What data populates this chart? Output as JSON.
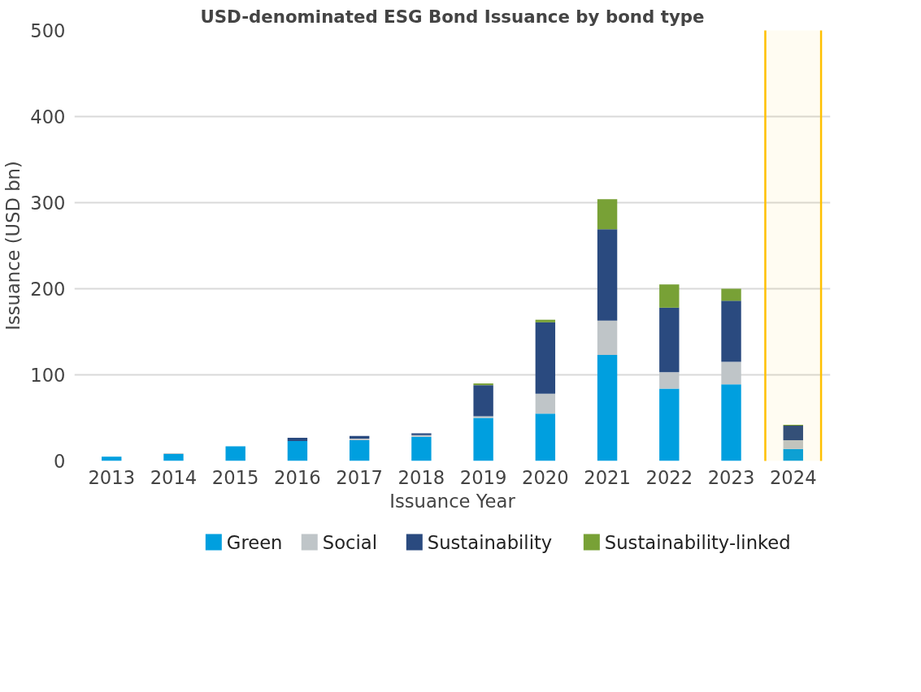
{
  "chart_data": {
    "type": "bar",
    "title": "USD-denominated ESG Bond Issuance by bond type",
    "xlabel": "Issuance Year",
    "ylabel": "Issuance (USD bn)",
    "categories": [
      "2013",
      "2014",
      "2015",
      "2016",
      "2017",
      "2018",
      "2019",
      "2020",
      "2021",
      "2022",
      "2023",
      "2024"
    ],
    "stacked": true,
    "ylim": [
      0,
      500
    ],
    "yticks": [
      0,
      100,
      200,
      300,
      400,
      500
    ],
    "grid": "y",
    "legend": "bottom",
    "series": [
      {
        "name": "Green",
        "color": "#009fdf",
        "values": [
          5,
          8,
          17,
          23,
          24,
          28,
          50,
          55,
          123,
          84,
          89,
          14
        ]
      },
      {
        "name": "Social",
        "color": "#bfc5c8",
        "values": [
          null,
          1,
          null,
          null,
          2,
          2,
          2,
          23,
          40,
          19,
          26,
          10
        ]
      },
      {
        "name": "Sustainability",
        "color": "#2a4a7f",
        "values": [
          null,
          null,
          null,
          4,
          3,
          2,
          36,
          83,
          106,
          75,
          71,
          17
        ]
      },
      {
        "name": "Sustainability-linked",
        "color": "#78a136",
        "values": [
          null,
          null,
          null,
          null,
          null,
          null,
          2,
          3,
          35,
          27,
          14,
          1
        ]
      }
    ],
    "bands": [
      {
        "axis": "x",
        "from": "2024",
        "to": "2024",
        "color": "#ffc000"
      }
    ]
  }
}
